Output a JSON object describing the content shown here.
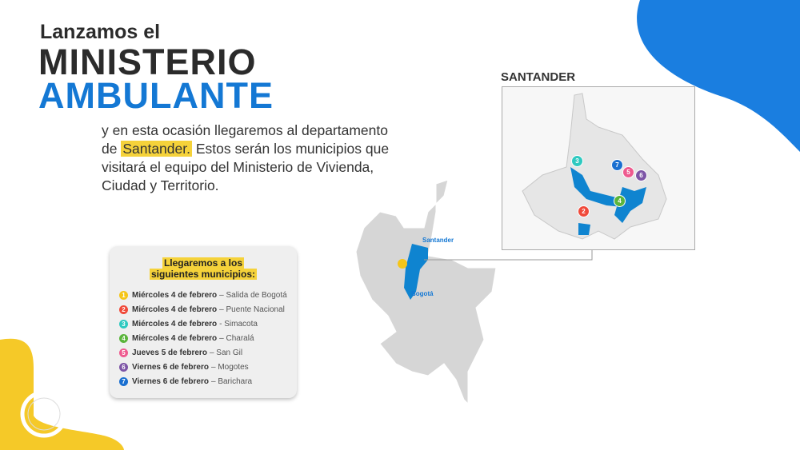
{
  "header": {
    "line1": "Lanzamos el",
    "line2": "MINISTERIO",
    "line3": "AMBULANTE"
  },
  "intro": {
    "before": "y en esta ocasión llegaremos al departamento de ",
    "highlight": "Santander.",
    "after": " Estos serán los municipios que visitará el equipo del Ministerio de Vivienda, Ciudad y Territorio."
  },
  "card": {
    "title_line1": "Llegaremos a los",
    "title_line2": "siguientes municipios:",
    "items": [
      {
        "n": "1",
        "day": "Miércoles 4 de febrero",
        "place": "– Salida de Bogotá",
        "color": "#f5c518"
      },
      {
        "n": "2",
        "day": "Miércoles 4 de febrero",
        "place": "– Puente Nacional",
        "color": "#f04a3a"
      },
      {
        "n": "3",
        "day": "Miércoles 4 de febrero",
        "place": "- Simacota",
        "color": "#2ec9c0"
      },
      {
        "n": "4",
        "day": "Miércoles 4 de febrero",
        "place": "– Charalá",
        "color": "#5bb53c"
      },
      {
        "n": "5",
        "day": "Jueves 5 de febrero",
        "place": "– San Gil",
        "color": "#ee5a8f"
      },
      {
        "n": "6",
        "day": "Viernes 6 de febrero",
        "place": "– Mogotes",
        "color": "#7d55a6"
      },
      {
        "n": "7",
        "day": "Viernes 6 de febrero",
        "place": "– Barichara",
        "color": "#1a6fd0"
      }
    ]
  },
  "map": {
    "santander_title": "SANTANDER",
    "label_santander": "Santander",
    "label_bogota": "Bogotá"
  },
  "colors": {
    "accent_blue": "#1478d4",
    "yellow": "#f5d23a",
    "highlight_region": "#0f84d0"
  }
}
